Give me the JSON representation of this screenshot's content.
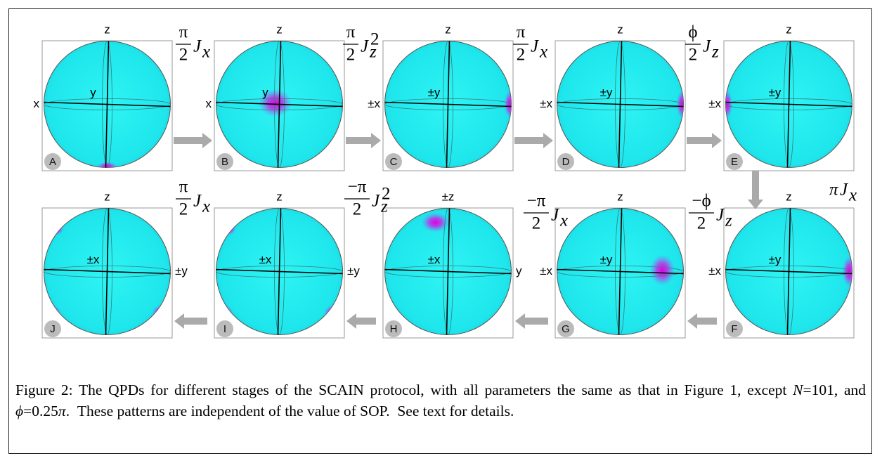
{
  "panels": [
    {
      "label": "A",
      "top": "z",
      "left": "x",
      "center": "y"
    },
    {
      "label": "B",
      "top": "z",
      "left": "x",
      "center": "y"
    },
    {
      "label": "C",
      "top": "z",
      "left": "±x",
      "center": "±y"
    },
    {
      "label": "D",
      "top": "z",
      "left": "±x",
      "center": "±y"
    },
    {
      "label": "E",
      "top": "z",
      "left": "±x",
      "center": "±y"
    },
    {
      "label": "F",
      "top": "z",
      "left": "±x",
      "center": "±y"
    },
    {
      "label": "G",
      "top": "z",
      "left": "±x",
      "center": "±y"
    },
    {
      "label": "H",
      "top": "±z",
      "center": "±x",
      "right": "y"
    },
    {
      "label": "I",
      "top": "z",
      "center": "±x",
      "right": "±y"
    },
    {
      "label": "J",
      "top": "z",
      "center": "±x",
      "right": "±y"
    }
  ],
  "operators": [
    {
      "numerator": "π",
      "denominator": "2",
      "operator": "J",
      "subscript": "x"
    },
    {
      "numerator": "π",
      "denominator": "2",
      "operator": "J",
      "subscript": "z",
      "superscript": "2"
    },
    {
      "numerator": "π",
      "denominator": "2",
      "operator": "J",
      "subscript": "x"
    },
    {
      "numerator": "ϕ",
      "denominator": "2",
      "operator": "J",
      "subscript": "z"
    },
    {
      "numerator": "π",
      "operator": "J",
      "subscript": "x"
    },
    {
      "numerator": "−ϕ",
      "denominator": "2",
      "operator": "J",
      "subscript": "z"
    },
    {
      "numerator": "−π",
      "denominator": "2",
      "operator": "J",
      "subscript": "x"
    },
    {
      "numerator": "−π",
      "denominator": "2",
      "operator": "J",
      "subscript": "z",
      "superscript": "2"
    },
    {
      "numerator": "π",
      "denominator": "2",
      "operator": "J",
      "subscript": "x"
    }
  ],
  "caption": [
    {
      "text": "Figure 2: The QPDs for different stages of the SCAIN protocol, with all parameters the same as that in Figure 1, except "
    },
    {
      "text": "N",
      "italic": true
    },
    {
      "text": "=101, and "
    },
    {
      "text": "ϕ",
      "italic": true
    },
    {
      "text": "=0.25"
    },
    {
      "text": "π",
      "italic": true
    },
    {
      "text": ".  These patterns are independent of the value of SOP.  See text for details."
    }
  ]
}
